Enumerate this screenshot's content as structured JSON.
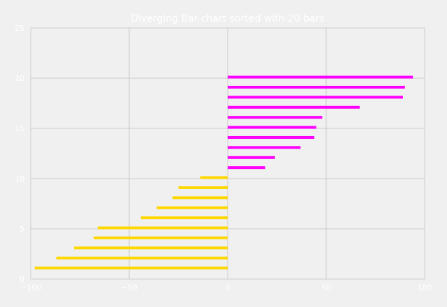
{
  "chart_data": {
    "type": "bar",
    "orientation": "horizontal",
    "title": "Diverging Bar chart sorted with 20 bars",
    "xlabel": "",
    "ylabel": "",
    "xlim": [
      -100,
      100
    ],
    "ylim": [
      0,
      25
    ],
    "x_ticks": [
      -100,
      -50,
      0,
      50,
      100
    ],
    "x_tick_labels": [
      "−100",
      "−50",
      "0",
      "50",
      "100"
    ],
    "y_ticks": [
      0,
      5,
      10,
      15,
      20,
      25
    ],
    "y_tick_labels": [
      "0",
      "5",
      "10",
      "15",
      "20",
      "25"
    ],
    "grid": true,
    "legend": "none",
    "colors": {
      "positive": "#ff00ff",
      "negative": "#ffd700",
      "grid": "#cbcbcb",
      "background": "#f0f0f0",
      "text": "#ffffff"
    },
    "bars": [
      {
        "y": 1.1,
        "value": -98
      },
      {
        "y": 2.1,
        "value": -87
      },
      {
        "y": 3.1,
        "value": -78
      },
      {
        "y": 4.1,
        "value": -68
      },
      {
        "y": 5.1,
        "value": -66
      },
      {
        "y": 6.1,
        "value": -44
      },
      {
        "y": 7.1,
        "value": -36
      },
      {
        "y": 8.1,
        "value": -28
      },
      {
        "y": 9.1,
        "value": -25
      },
      {
        "y": 10.1,
        "value": -14
      },
      {
        "y": 11.1,
        "value": 19
      },
      {
        "y": 12.1,
        "value": 24
      },
      {
        "y": 13.1,
        "value": 37
      },
      {
        "y": 14.1,
        "value": 44
      },
      {
        "y": 15.1,
        "value": 45
      },
      {
        "y": 16.1,
        "value": 48
      },
      {
        "y": 17.1,
        "value": 67
      },
      {
        "y": 18.1,
        "value": 89
      },
      {
        "y": 19.1,
        "value": 90
      },
      {
        "y": 20.1,
        "value": 94
      }
    ]
  }
}
